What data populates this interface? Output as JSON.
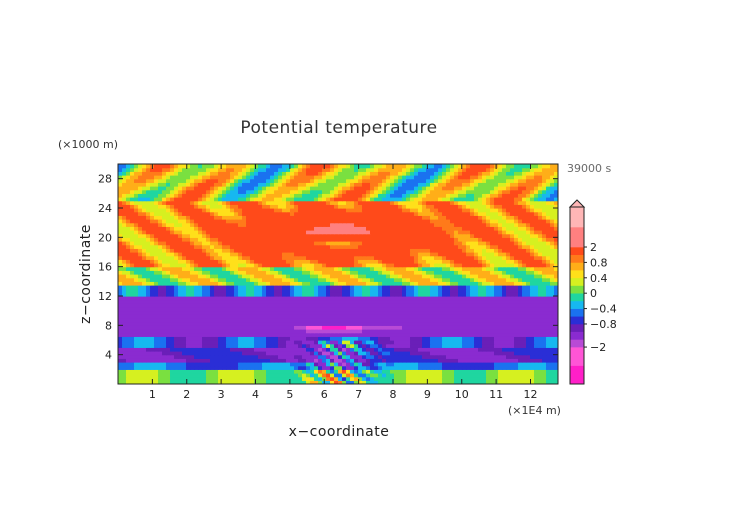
{
  "chart_data": {
    "type": "heatmap",
    "title": "Potential temperature",
    "xlabel": "x−coordinate",
    "ylabel": "z−coordinate",
    "x_unit": "(×1E4 m)",
    "y_unit": "(×1000 m)",
    "time_label": "39000 s",
    "xlim": [
      0,
      12.8
    ],
    "ylim": [
      0,
      30
    ],
    "x_ticks": [
      1,
      2,
      3,
      4,
      5,
      6,
      7,
      8,
      9,
      10,
      11,
      12
    ],
    "y_ticks": [
      4,
      8,
      12,
      16,
      20,
      24,
      28
    ],
    "colorbar": {
      "levels": [
        -3,
        -2.5,
        -2,
        -1.5,
        -1,
        -0.8,
        -0.6,
        -0.4,
        -0.2,
        0,
        0.2,
        0.4,
        0.6,
        0.8,
        1,
        2,
        3
      ],
      "labeled_ticks": [
        "2",
        "0.8",
        "0.4",
        "0",
        "−0.4",
        "−0.8",
        "−2"
      ],
      "labeled_values": [
        2,
        0.8,
        0.4,
        0,
        -0.4,
        -0.8,
        -2
      ],
      "colors": [
        "#ff1fc8",
        "#ff55d6",
        "#b84ad6",
        "#8a2bd0",
        "#6a1fb8",
        "#2a2ed6",
        "#1a72f0",
        "#16b8f0",
        "#1fd6a0",
        "#7ae040",
        "#d6f020",
        "#ffe01a",
        "#ffae18",
        "#ff7a1a",
        "#ff4a1a",
        "#ff8080",
        "#ffb6b6"
      ],
      "extend": "max"
    }
  }
}
